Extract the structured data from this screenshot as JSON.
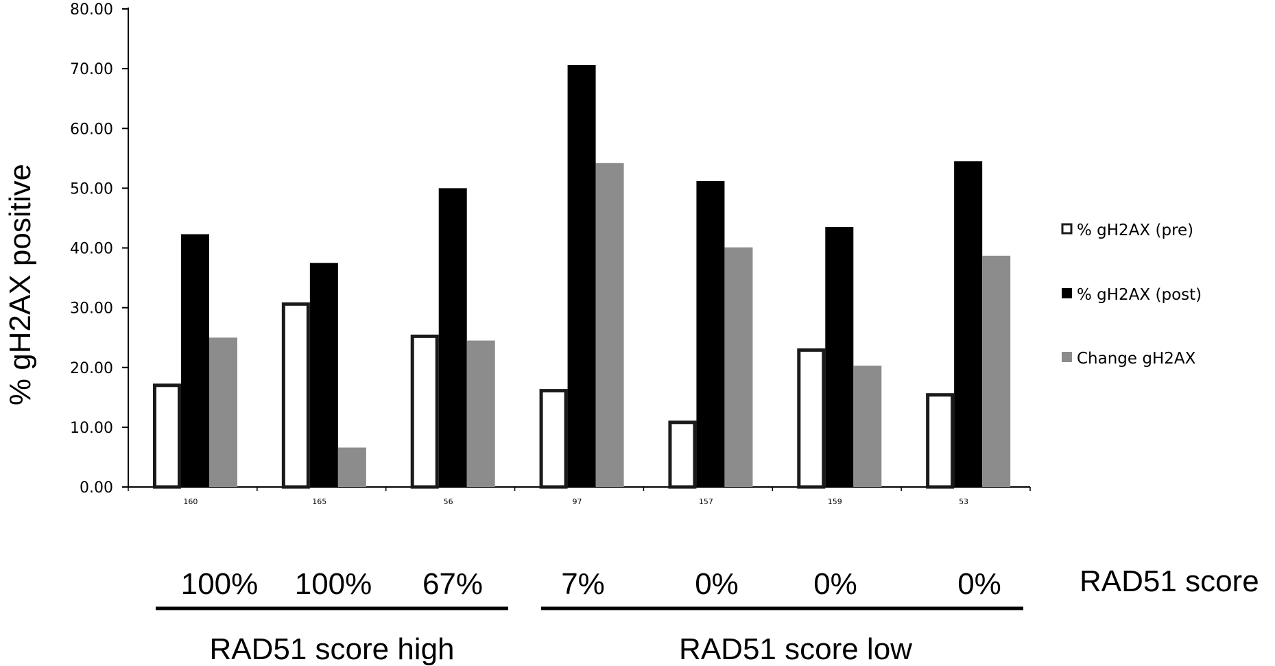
{
  "chart_data": {
    "type": "bar",
    "title": "",
    "xlabel": "",
    "ylabel": "% gH2AX positive",
    "ylim": [
      0,
      80
    ],
    "yticks": [
      "0.00",
      "10.00",
      "20.00",
      "30.00",
      "40.00",
      "50.00",
      "60.00",
      "70.00",
      "80.00"
    ],
    "categories": [
      "160",
      "165",
      "56",
      "97",
      "157",
      "159",
      "53"
    ],
    "series": [
      {
        "name": "% gH2AX (pre)",
        "values": [
          17.3,
          30.9,
          25.5,
          16.4,
          11.1,
          23.2,
          15.7
        ],
        "fill": "#ffffff",
        "stroke": "#1a1a1a"
      },
      {
        "name": "% gH2AX (post)",
        "values": [
          42.3,
          37.5,
          50.0,
          70.6,
          51.2,
          43.5,
          54.5
        ],
        "fill": "#000000",
        "stroke": "#000000"
      },
      {
        "name": "Change gH2AX",
        "values": [
          25.0,
          6.6,
          24.5,
          54.2,
          40.1,
          20.3,
          38.7
        ],
        "fill": "#8c8c8c",
        "stroke": "#8c8c8c"
      }
    ],
    "legend_position": "right",
    "grid": false,
    "rad51_scores": [
      "100%",
      "100%",
      "67%",
      "7%",
      "0%",
      "0%",
      "0%"
    ],
    "rad51_score_label": "RAD51 score",
    "groups": [
      {
        "label": "RAD51 score high",
        "categories": [
          "160",
          "165",
          "56"
        ]
      },
      {
        "label": "RAD51 score low",
        "categories": [
          "97",
          "157",
          "159",
          "53"
        ]
      }
    ]
  }
}
